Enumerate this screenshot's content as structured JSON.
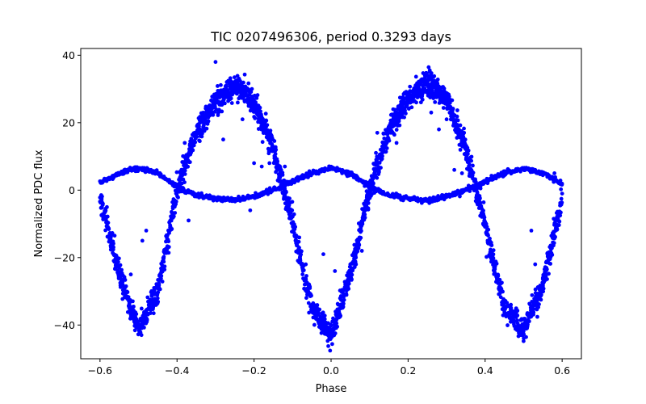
{
  "chart_data": {
    "type": "scatter",
    "title": "TIC 0207496306, period 0.3293 days",
    "xlabel": "Phase",
    "ylabel": "Normalized PDC flux",
    "xlim": [
      -0.65,
      0.65
    ],
    "ylim": [
      -50,
      42
    ],
    "xticks": [
      -0.6,
      -0.4,
      -0.2,
      0.0,
      0.2,
      0.4,
      0.6
    ],
    "xtick_labels": [
      "−0.6",
      "−0.4",
      "−0.2",
      "0.0",
      "0.2",
      "0.4",
      "0.6"
    ],
    "yticks": [
      -40,
      -20,
      0,
      20,
      40
    ],
    "ytick_labels": [
      "−40",
      "−20",
      "0",
      "20",
      "40"
    ],
    "grid": false,
    "color": "#0000ff",
    "series": [
      {
        "components": [
          {
            "x": [
              -0.6,
              -0.55,
              -0.5,
              -0.45,
              -0.4,
              -0.35,
              -0.3,
              -0.25,
              -0.2,
              -0.15,
              -0.1,
              -0.05,
              0.0,
              0.05,
              0.1,
              0.15,
              0.2,
              0.25,
              0.3,
              0.35,
              0.4,
              0.45,
              0.5,
              0.55,
              0.6
            ],
            "y": [
              -2,
              -25,
              -41,
              -30,
              0,
              17,
              26,
              31,
              26,
              12,
              -10,
              -35,
              -43,
              -25,
              0,
              18,
              27,
              32,
              27,
              12,
              -10,
              -35,
              -41,
              -28,
              -3
            ],
            "spread": [
              3,
              3,
              2.5,
              3,
              3,
              3,
              3,
              3,
              3,
              3,
              3,
              3,
              3,
              3,
              3,
              3,
              3,
              3.5,
              3,
              3,
              3,
              3,
              2.5,
              3,
              3
            ]
          },
          {
            "x": [
              -0.6,
              -0.55,
              -0.5,
              -0.45,
              -0.4,
              -0.35,
              -0.3,
              -0.25,
              -0.2,
              -0.15,
              -0.1,
              -0.05,
              0.0,
              0.05,
              0.1,
              0.15,
              0.2,
              0.25,
              0.3,
              0.35,
              0.4,
              0.45,
              0.5,
              0.55,
              0.6
            ],
            "y": [
              2,
              5,
              6.5,
              5,
              1,
              -1.5,
              -2.5,
              -3,
              -2,
              0,
              2.5,
              5,
              6.5,
              5,
              1,
              -1.5,
              -2.5,
              -3,
              -2,
              0,
              2.5,
              5,
              6.5,
              5,
              2
            ],
            "spread": [
              0.6,
              0.6,
              0.6,
              0.6,
              0.6,
              0.6,
              0.6,
              0.6,
              0.6,
              0.6,
              0.6,
              0.6,
              0.6,
              0.6,
              0.6,
              0.6,
              0.6,
              0.6,
              0.6,
              0.6,
              0.6,
              0.6,
              0.6,
              0.6,
              0.6
            ]
          }
        ],
        "outliers": {
          "x": [
            -0.3,
            -0.23,
            -0.2,
            -0.18,
            -0.16,
            -0.14,
            -0.12,
            -0.28,
            -0.38,
            -0.37,
            -0.48,
            -0.49,
            -0.52,
            -0.21,
            0.11,
            0.12,
            0.26,
            0.28,
            0.3,
            0.32,
            0.34,
            0.36,
            0.17,
            0.52,
            0.53,
            0.55,
            0.58,
            -0.02,
            0.01,
            0.05,
            0.08
          ],
          "y": [
            38,
            21,
            8,
            7,
            8,
            8,
            7,
            15,
            14,
            -9,
            -12,
            -15,
            -25,
            -6,
            2,
            17,
            23,
            18,
            21,
            6,
            5,
            1,
            14,
            -12,
            -22,
            -26,
            5,
            -19,
            -24,
            -22,
            -18
          ]
        }
      }
    ]
  }
}
